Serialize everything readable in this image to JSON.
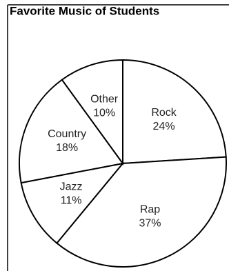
{
  "chart_data": {
    "type": "pie",
    "title": "Favorite Music of Students",
    "categories": [
      "Rock",
      "Rap",
      "Jazz",
      "Country",
      "Other"
    ],
    "values": [
      24,
      37,
      11,
      18,
      10
    ],
    "value_labels": [
      "24%",
      "37%",
      "11%",
      "18%",
      "10%"
    ]
  }
}
